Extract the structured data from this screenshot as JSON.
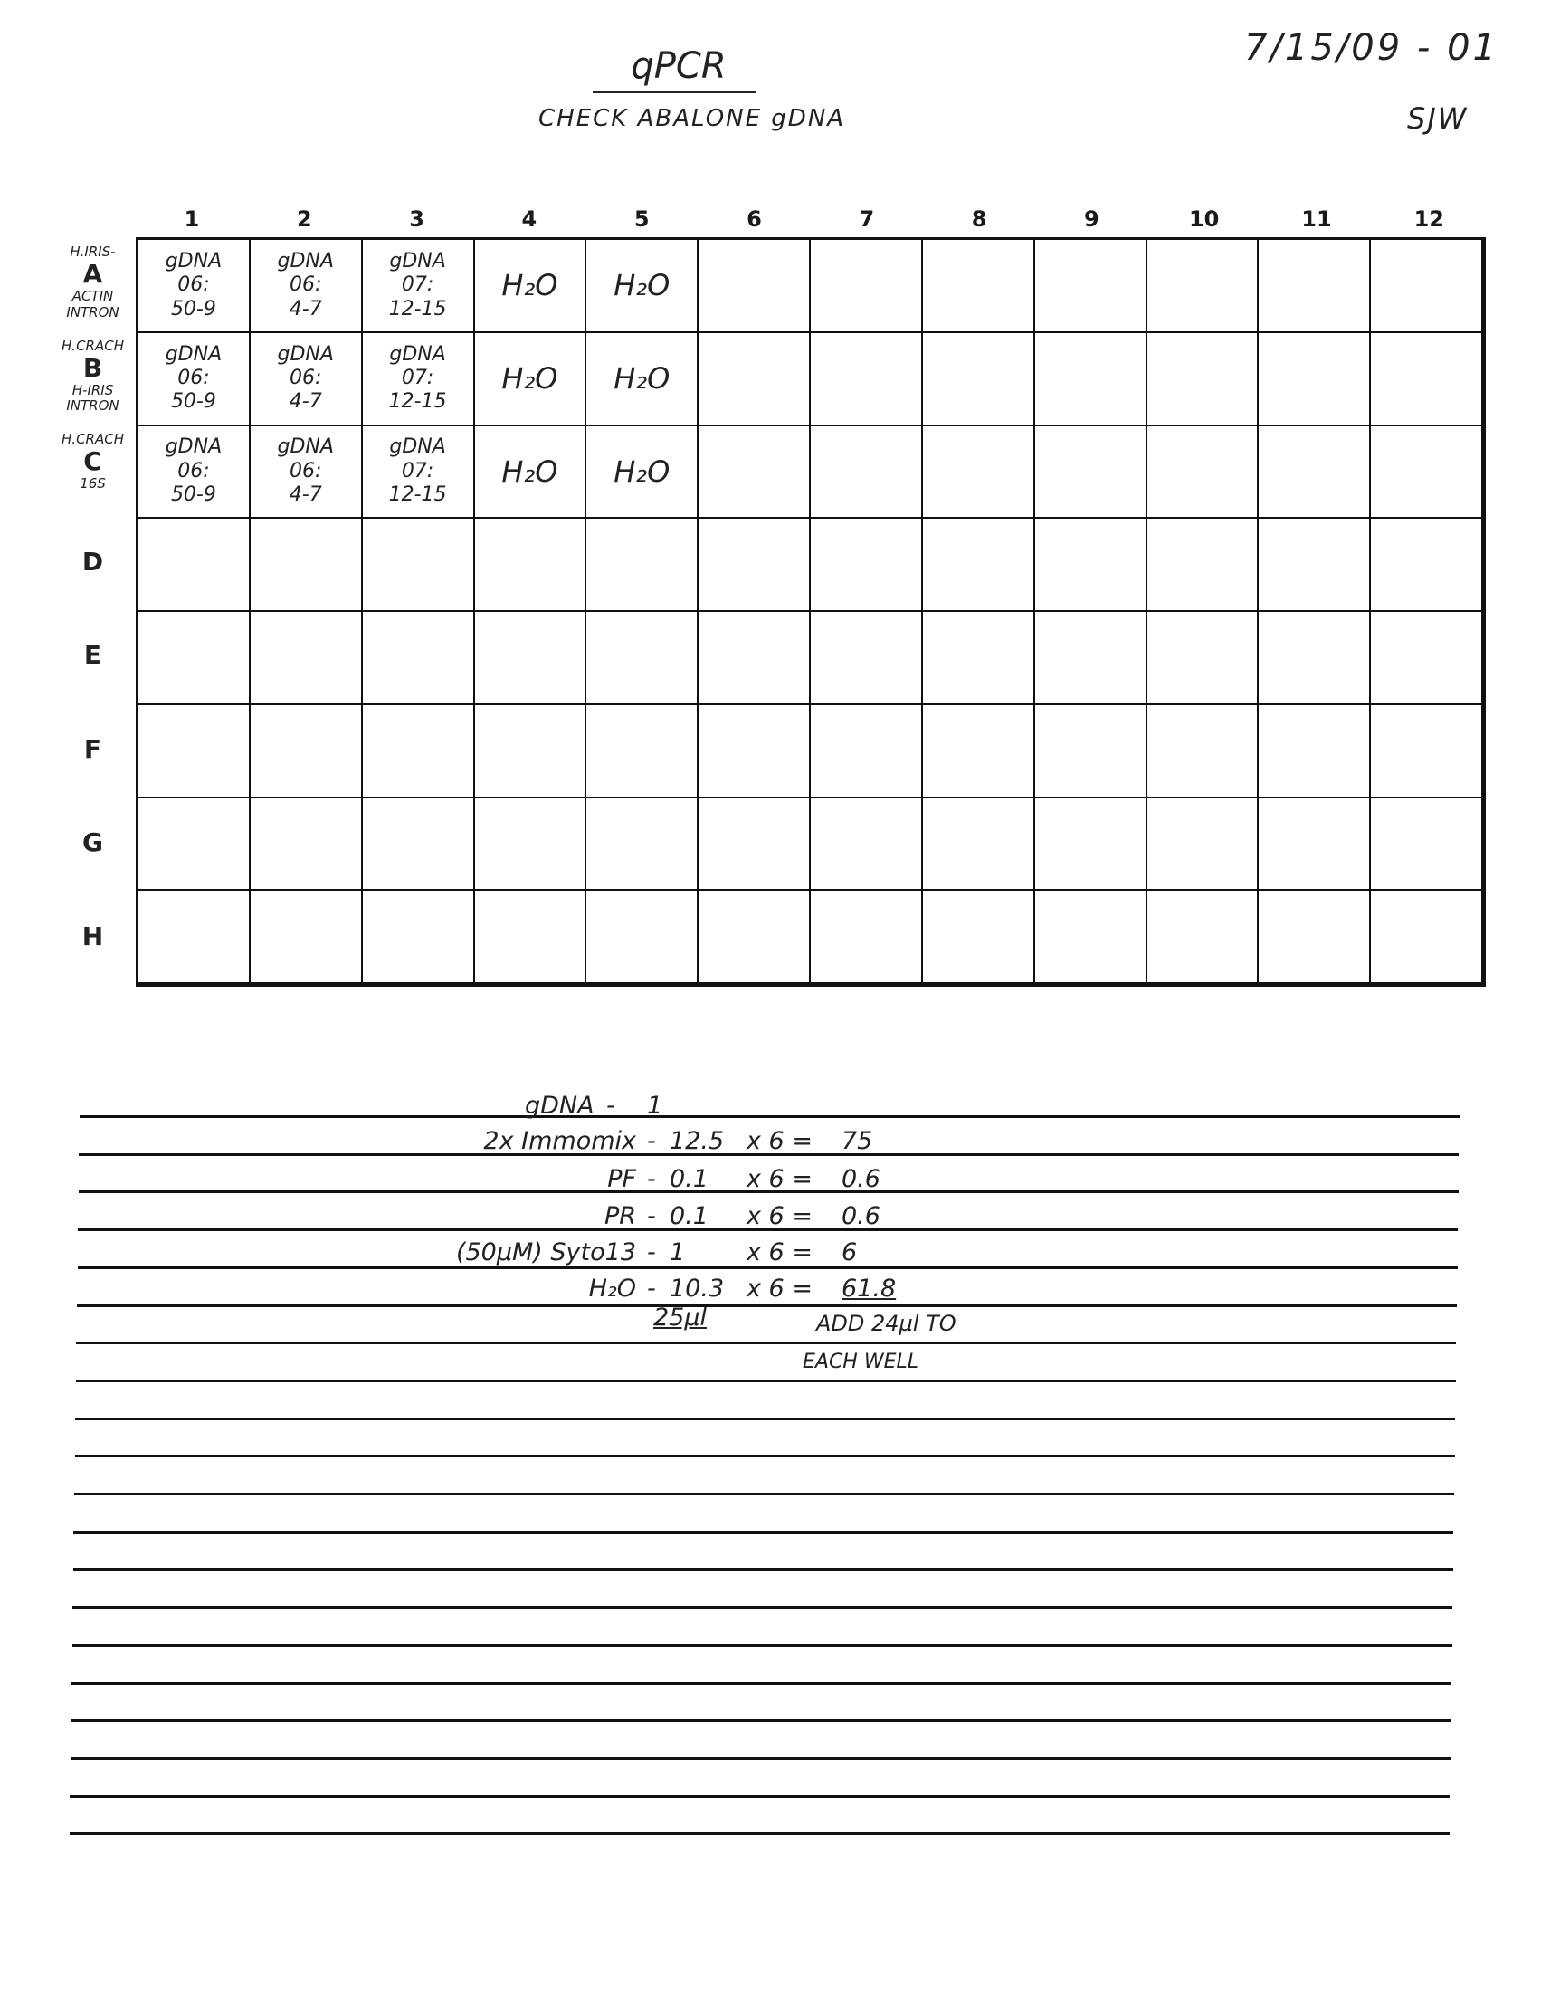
{
  "header": {
    "title": "qPCR",
    "subtitle": "CHECK ABALONE gDNA",
    "date": "7/15/09 - 01",
    "initials": "SJW"
  },
  "plate": {
    "columns": [
      "1",
      "2",
      "3",
      "4",
      "5",
      "6",
      "7",
      "8",
      "9",
      "10",
      "11",
      "12"
    ],
    "rows": [
      {
        "letter": "A",
        "above": "H.IRIS-",
        "below": "ACTIN INTRON",
        "cells": [
          [
            "gDNA",
            "06:",
            "50-9"
          ],
          [
            "gDNA",
            "06:",
            "4-7"
          ],
          [
            "gDNA",
            "07:",
            "12-15"
          ],
          [
            "H₂O"
          ],
          [
            "H₂O"
          ]
        ]
      },
      {
        "letter": "B",
        "above": "H.CRACH",
        "below": "H-IRIS INTRON",
        "cells": [
          [
            "gDNA",
            "06:",
            "50-9"
          ],
          [
            "gDNA",
            "06:",
            "4-7"
          ],
          [
            "gDNA",
            "07:",
            "12-15"
          ],
          [
            "H₂O"
          ],
          [
            "H₂O"
          ]
        ]
      },
      {
        "letter": "C",
        "above": "H.CRACH",
        "below": "16S",
        "cells": [
          [
            "gDNA",
            "06:",
            "50-9"
          ],
          [
            "gDNA",
            "06:",
            "4-7"
          ],
          [
            "gDNA",
            "07:",
            "12-15"
          ],
          [
            "H₂O"
          ],
          [
            "H₂O"
          ]
        ]
      },
      {
        "letter": "D",
        "above": "",
        "below": "",
        "cells": []
      },
      {
        "letter": "E",
        "above": "",
        "below": "",
        "cells": []
      },
      {
        "letter": "F",
        "above": "",
        "below": "",
        "cells": []
      },
      {
        "letter": "G",
        "above": "",
        "below": "",
        "cells": []
      },
      {
        "letter": "H",
        "above": "",
        "below": "",
        "cells": []
      }
    ]
  },
  "recipe": {
    "lines": [
      {
        "reagent": "gDNA",
        "amount": "1",
        "mult": "",
        "total": ""
      },
      {
        "reagent": "2x Immomix",
        "amount": "12.5",
        "mult": "x 6 =",
        "total": "75"
      },
      {
        "reagent": "PF",
        "amount": "0.1",
        "mult": "x 6 =",
        "total": "0.6"
      },
      {
        "reagent": "PR",
        "amount": "0.1",
        "mult": "x 6 =",
        "total": "0.6"
      },
      {
        "reagent": "(50µM) Syto13",
        "amount": "1",
        "mult": "x 6 =",
        "total": "6"
      },
      {
        "reagent": "H₂O",
        "amount": "10.3",
        "mult": "x 6 =",
        "total": "61.8"
      }
    ],
    "per_well_total": "25µl",
    "instruction_line1": "ADD 24µl TO",
    "instruction_line2": "EACH WELL"
  }
}
